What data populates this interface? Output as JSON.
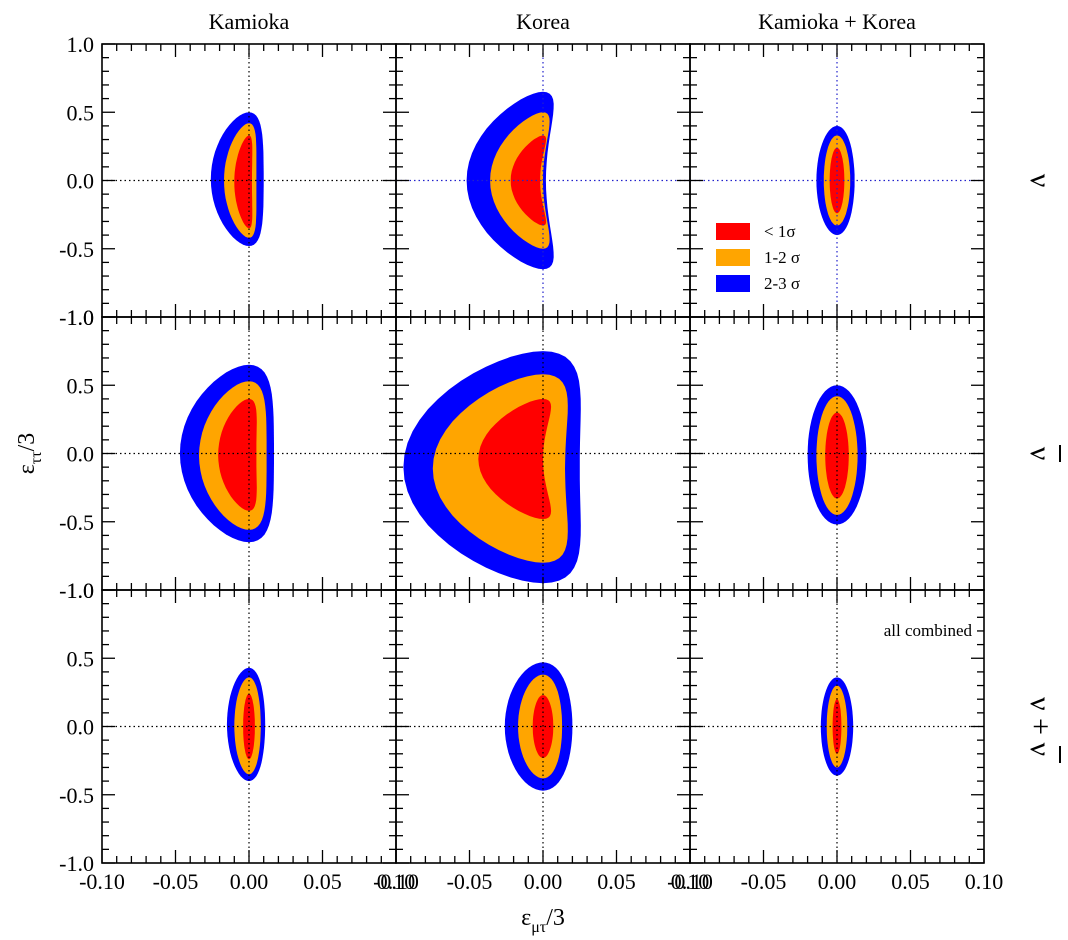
{
  "chart_data": {
    "type": "contour",
    "columns": [
      "Kamioka",
      "Korea",
      "Kamioka + Korea"
    ],
    "rows": [
      {
        "label": "ν",
        "bar": false
      },
      {
        "label": "ν",
        "bar": true
      },
      {
        "label": "ν + ν",
        "bar": true
      }
    ],
    "xlabel": {
      "main": "ε",
      "sub": "μτ",
      "suffix": "/3"
    },
    "ylabel": {
      "main": "ε",
      "sub": "ττ",
      "suffix": "/3"
    },
    "xlim": [
      -0.1,
      0.1
    ],
    "ylim": [
      -1.0,
      1.0
    ],
    "xticks": [
      "-0.10",
      "-0.05",
      "0.00",
      "0.05",
      "0.10"
    ],
    "yticks": [
      "-1.0",
      "-0.5",
      "0.0",
      "0.5",
      "1.0"
    ],
    "legend": {
      "placement": "Korea ν panel, lower-right",
      "items": [
        {
          "label": "< 1σ",
          "color": "#ff0000"
        },
        {
          "label": "1-2 σ",
          "color": "#ffa500"
        },
        {
          "label": "2-3 σ",
          "color": "#0000ff"
        }
      ]
    },
    "annotation": {
      "text": "all combined",
      "panel": [
        2,
        2
      ]
    },
    "panels": [
      {
        "row": 0,
        "col": 0,
        "regions": [
          {
            "level": "2-3 σ",
            "x_center": 0.0,
            "x_halfwidth": 0.018,
            "y_min": -0.48,
            "y_max": 0.5,
            "bend": 0.008
          },
          {
            "level": "1-2 σ",
            "x_center": 0.0,
            "x_halfwidth": 0.011,
            "y_min": -0.42,
            "y_max": 0.42,
            "bend": 0.006
          },
          {
            "level": "< 1σ",
            "x_center": 0.0,
            "x_halfwidth": 0.006,
            "y_min": -0.35,
            "y_max": 0.33,
            "bend": 0.004
          }
        ]
      },
      {
        "row": 0,
        "col": 1,
        "regions": [
          {
            "level": "2-3 σ",
            "x_center": 0.0,
            "x_halfwidth": 0.027,
            "y_min": -0.65,
            "y_max": 0.65,
            "bend": 0.025
          },
          {
            "level": "1-2 σ",
            "x_center": 0.0,
            "x_halfwidth": 0.018,
            "y_min": -0.5,
            "y_max": 0.5,
            "bend": 0.018
          },
          {
            "level": "< 1σ",
            "x_center": 0.0,
            "x_halfwidth": 0.01,
            "y_min": -0.33,
            "y_max": 0.33,
            "bend": 0.012
          }
        ]
      },
      {
        "row": 0,
        "col": 2,
        "regions": [
          {
            "level": "2-3 σ",
            "x_center": 0.0,
            "x_halfwidth": 0.013,
            "y_min": -0.4,
            "y_max": 0.4,
            "bend": 0.001
          },
          {
            "level": "1-2 σ",
            "x_center": 0.0,
            "x_halfwidth": 0.009,
            "y_min": -0.33,
            "y_max": 0.33,
            "bend": 0.0
          },
          {
            "level": "< 1σ",
            "x_center": 0.0,
            "x_halfwidth": 0.005,
            "y_min": -0.24,
            "y_max": 0.24,
            "bend": 0.0
          }
        ]
      },
      {
        "row": 1,
        "col": 0,
        "regions": [
          {
            "level": "2-3 σ",
            "x_center": 0.0,
            "x_halfwidth": 0.032,
            "y_min": -0.65,
            "y_max": 0.65,
            "bend": 0.015
          },
          {
            "level": "1-2 σ",
            "x_center": 0.0,
            "x_halfwidth": 0.023,
            "y_min": -0.56,
            "y_max": 0.53,
            "bend": 0.011
          },
          {
            "level": "< 1σ",
            "x_center": 0.0,
            "x_halfwidth": 0.013,
            "y_min": -0.42,
            "y_max": 0.4,
            "bend": 0.008
          }
        ]
      },
      {
        "row": 1,
        "col": 1,
        "regions": [
          {
            "level": "2-3 σ",
            "x_center": 0.0,
            "x_halfwidth": 0.06,
            "y_min": -0.95,
            "y_max": 0.75,
            "bend": 0.035
          },
          {
            "level": "1-2 σ",
            "x_center": 0.0,
            "x_halfwidth": 0.045,
            "y_min": -0.8,
            "y_max": 0.58,
            "bend": 0.03
          },
          {
            "level": "< 1σ",
            "x_center": 0.0,
            "x_halfwidth": 0.022,
            "y_min": -0.48,
            "y_max": 0.4,
            "bend": 0.022
          }
        ]
      },
      {
        "row": 1,
        "col": 2,
        "regions": [
          {
            "level": "2-3 σ",
            "x_center": 0.0,
            "x_halfwidth": 0.02,
            "y_min": -0.52,
            "y_max": 0.5,
            "bend": 0.0
          },
          {
            "level": "1-2 σ",
            "x_center": 0.0,
            "x_halfwidth": 0.014,
            "y_min": -0.45,
            "y_max": 0.42,
            "bend": 0.0
          },
          {
            "level": "< 1σ",
            "x_center": 0.0,
            "x_halfwidth": 0.008,
            "y_min": -0.33,
            "y_max": 0.3,
            "bend": 0.0
          }
        ]
      },
      {
        "row": 2,
        "col": 0,
        "regions": [
          {
            "level": "2-3 σ",
            "x_center": 0.0,
            "x_halfwidth": 0.013,
            "y_min": -0.4,
            "y_max": 0.43,
            "bend": 0.002
          },
          {
            "level": "1-2 σ",
            "x_center": 0.0,
            "x_halfwidth": 0.009,
            "y_min": -0.35,
            "y_max": 0.36,
            "bend": 0.001
          },
          {
            "level": "< 1σ",
            "x_center": 0.0,
            "x_halfwidth": 0.004,
            "y_min": -0.24,
            "y_max": 0.24,
            "bend": 0.0
          }
        ]
      },
      {
        "row": 2,
        "col": 1,
        "regions": [
          {
            "level": "2-3 σ",
            "x_center": 0.0,
            "x_halfwidth": 0.023,
            "y_min": -0.47,
            "y_max": 0.47,
            "bend": 0.003
          },
          {
            "level": "1-2 σ",
            "x_center": 0.0,
            "x_halfwidth": 0.015,
            "y_min": -0.38,
            "y_max": 0.38,
            "bend": 0.002
          },
          {
            "level": "< 1σ",
            "x_center": 0.0,
            "x_halfwidth": 0.007,
            "y_min": -0.23,
            "y_max": 0.23,
            "bend": 0.0
          }
        ]
      },
      {
        "row": 2,
        "col": 2,
        "regions": [
          {
            "level": "2-3 σ",
            "x_center": 0.0,
            "x_halfwidth": 0.011,
            "y_min": -0.36,
            "y_max": 0.36,
            "bend": 0.0
          },
          {
            "level": "1-2 σ",
            "x_center": 0.0,
            "x_halfwidth": 0.007,
            "y_min": -0.3,
            "y_max": 0.3,
            "bend": 0.0
          },
          {
            "level": "< 1σ",
            "x_center": 0.0,
            "x_halfwidth": 0.003,
            "y_min": -0.2,
            "y_max": 0.2,
            "bend": 0.0
          }
        ]
      }
    ]
  }
}
